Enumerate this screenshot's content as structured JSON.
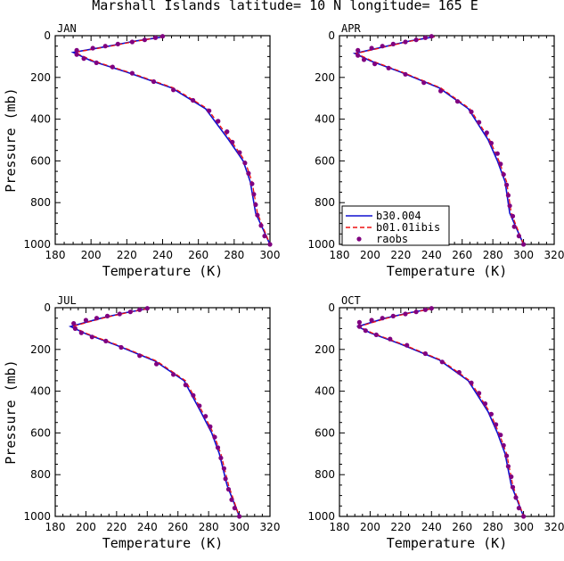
{
  "title": "Marshall Islands  latitude= 10 N longitude= 165 E",
  "xlabel": "Temperature (K)",
  "ylabel": "Pressure (mb)",
  "colors": {
    "b30": "#1010d0",
    "b01": "#ee1111",
    "raobs": "#800080"
  },
  "legend": {
    "labels": [
      "b30.004",
      "b01.01ibis",
      "raobs"
    ]
  },
  "chart_data": [
    {
      "type": "line",
      "month": "JAN",
      "xlim": [
        180,
        300
      ],
      "ylim": [
        0,
        1000
      ],
      "xticks": [
        "180",
        "200",
        "220",
        "240",
        "260",
        "280",
        "300"
      ],
      "yticks": [
        "0",
        "200",
        "400",
        "600",
        "800",
        "1000"
      ],
      "series": [
        {
          "name": "b30.004",
          "points": [
            [
              241,
              5
            ],
            [
              225,
              25
            ],
            [
              210,
              50
            ],
            [
              190,
              80
            ],
            [
              200,
              120
            ],
            [
              220,
              175
            ],
            [
              245,
              250
            ],
            [
              264,
              350
            ],
            [
              277,
              500
            ],
            [
              285,
              600
            ],
            [
              289,
              700
            ],
            [
              292,
              850
            ],
            [
              300,
              1000
            ]
          ]
        },
        {
          "name": "b01.01ibis",
          "points": [
            [
              241,
              5
            ],
            [
              226,
              25
            ],
            [
              211,
              50
            ],
            [
              191,
              80
            ],
            [
              201,
              120
            ],
            [
              221,
              175
            ],
            [
              246,
              250
            ],
            [
              265,
              350
            ],
            [
              278,
              500
            ],
            [
              286,
              600
            ],
            [
              290,
              700
            ],
            [
              293,
              850
            ],
            [
              300,
              1000
            ]
          ]
        },
        {
          "name": "raobs",
          "points": [
            [
              240,
              3
            ],
            [
              236,
              10
            ],
            [
              230,
              20
            ],
            [
              223,
              30
            ],
            [
              215,
              40
            ],
            [
              208,
              50
            ],
            [
              201,
              60
            ],
            [
              192,
              70
            ],
            [
              192,
              90
            ],
            [
              196,
              110
            ],
            [
              203,
              130
            ],
            [
              212,
              150
            ],
            [
              223,
              180
            ],
            [
              235,
              220
            ],
            [
              246,
              260
            ],
            [
              257,
              310
            ],
            [
              266,
              360
            ],
            [
              271,
              410
            ],
            [
              276,
              460
            ],
            [
              279,
              510
            ],
            [
              283,
              560
            ],
            [
              286,
              610
            ],
            [
              288,
              660
            ],
            [
              290,
              710
            ],
            [
              291,
              760
            ],
            [
              292,
              810
            ],
            [
              293,
              860
            ],
            [
              295,
              910
            ],
            [
              297,
              960
            ],
            [
              300,
              1000
            ]
          ]
        }
      ]
    },
    {
      "type": "line",
      "month": "APR",
      "xlim": [
        180,
        320
      ],
      "ylim": [
        0,
        1000
      ],
      "xticks": [
        "180",
        "200",
        "220",
        "240",
        "260",
        "280",
        "300",
        "320"
      ],
      "yticks": [
        "0",
        "200",
        "400",
        "600",
        "800",
        "1000"
      ],
      "series": [
        {
          "name": "b30.004",
          "points": [
            [
              242,
              5
            ],
            [
              226,
              25
            ],
            [
              211,
              50
            ],
            [
              190,
              85
            ],
            [
              200,
              120
            ],
            [
              220,
              175
            ],
            [
              245,
              250
            ],
            [
              264,
              350
            ],
            [
              277,
              500
            ],
            [
              283,
              600
            ],
            [
              288,
              700
            ],
            [
              291,
              850
            ],
            [
              300,
              1000
            ]
          ]
        },
        {
          "name": "b01.01ibis",
          "points": [
            [
              242,
              5
            ],
            [
              227,
              25
            ],
            [
              212,
              50
            ],
            [
              191,
              85
            ],
            [
              201,
              120
            ],
            [
              221,
              175
            ],
            [
              246,
              250
            ],
            [
              265,
              350
            ],
            [
              278,
              500
            ],
            [
              284,
              600
            ],
            [
              289,
              700
            ],
            [
              292,
              850
            ],
            [
              300,
              1000
            ]
          ]
        },
        {
          "name": "raobs",
          "points": [
            [
              240,
              3
            ],
            [
              236,
              10
            ],
            [
              230,
              20
            ],
            [
              223,
              30
            ],
            [
              215,
              40
            ],
            [
              208,
              50
            ],
            [
              201,
              60
            ],
            [
              192,
              70
            ],
            [
              192,
              95
            ],
            [
              196,
              115
            ],
            [
              203,
              135
            ],
            [
              212,
              155
            ],
            [
              223,
              185
            ],
            [
              235,
              225
            ],
            [
              246,
              265
            ],
            [
              257,
              315
            ],
            [
              266,
              365
            ],
            [
              271,
              415
            ],
            [
              276,
              465
            ],
            [
              279,
              515
            ],
            [
              283,
              565
            ],
            [
              285,
              615
            ],
            [
              287,
              665
            ],
            [
              289,
              715
            ],
            [
              290,
              765
            ],
            [
              291,
              815
            ],
            [
              293,
              865
            ],
            [
              294,
              915
            ],
            [
              297,
              960
            ],
            [
              300,
              1000
            ]
          ]
        }
      ]
    },
    {
      "type": "line",
      "month": "JUL",
      "xlim": [
        180,
        320
      ],
      "ylim": [
        0,
        1000
      ],
      "xticks": [
        "180",
        "200",
        "220",
        "240",
        "260",
        "280",
        "300",
        "320"
      ],
      "yticks": [
        "0",
        "200",
        "400",
        "600",
        "800",
        "1000"
      ],
      "series": [
        {
          "name": "b30.004",
          "points": [
            [
              240,
              5
            ],
            [
              225,
              25
            ],
            [
              210,
              50
            ],
            [
              190,
              90
            ],
            [
              200,
              125
            ],
            [
              220,
              180
            ],
            [
              245,
              255
            ],
            [
              264,
              350
            ],
            [
              275,
              500
            ],
            [
              282,
              600
            ],
            [
              287,
              700
            ],
            [
              292,
              850
            ],
            [
              300,
              1000
            ]
          ]
        },
        {
          "name": "b01.01ibis",
          "points": [
            [
              240,
              5
            ],
            [
              226,
              25
            ],
            [
              211,
              50
            ],
            [
              191,
              90
            ],
            [
              201,
              125
            ],
            [
              221,
              180
            ],
            [
              246,
              255
            ],
            [
              265,
              350
            ],
            [
              276,
              500
            ],
            [
              283,
              600
            ],
            [
              288,
              700
            ],
            [
              293,
              850
            ],
            [
              300,
              1000
            ]
          ]
        },
        {
          "name": "raobs",
          "points": [
            [
              240,
              3
            ],
            [
              235,
              10
            ],
            [
              229,
              20
            ],
            [
              222,
              30
            ],
            [
              214,
              40
            ],
            [
              207,
              50
            ],
            [
              200,
              60
            ],
            [
              192,
              75
            ],
            [
              193,
              100
            ],
            [
              197,
              120
            ],
            [
              204,
              140
            ],
            [
              213,
              160
            ],
            [
              223,
              190
            ],
            [
              235,
              230
            ],
            [
              246,
              270
            ],
            [
              257,
              320
            ],
            [
              265,
              370
            ],
            [
              270,
              420
            ],
            [
              274,
              470
            ],
            [
              278,
              520
            ],
            [
              281,
              570
            ],
            [
              284,
              620
            ],
            [
              286,
              670
            ],
            [
              288,
              720
            ],
            [
              290,
              770
            ],
            [
              291,
              820
            ],
            [
              293,
              870
            ],
            [
              295,
              920
            ],
            [
              297,
              960
            ],
            [
              300,
              1000
            ]
          ]
        }
      ]
    },
    {
      "type": "line",
      "month": "OCT",
      "xlim": [
        180,
        320
      ],
      "ylim": [
        0,
        1000
      ],
      "xticks": [
        "180",
        "200",
        "220",
        "240",
        "260",
        "280",
        "300",
        "320"
      ],
      "yticks": [
        "0",
        "200",
        "400",
        "600",
        "800",
        "1000"
      ],
      "series": [
        {
          "name": "b30.004",
          "points": [
            [
              240,
              5
            ],
            [
              225,
              25
            ],
            [
              210,
              50
            ],
            [
              192,
              90
            ],
            [
              200,
              120
            ],
            [
              220,
              175
            ],
            [
              245,
              250
            ],
            [
              264,
              350
            ],
            [
              277,
              500
            ],
            [
              283,
              600
            ],
            [
              288,
              700
            ],
            [
              292,
              850
            ],
            [
              300,
              1000
            ]
          ]
        },
        {
          "name": "b01.01ibis",
          "points": [
            [
              240,
              5
            ],
            [
              226,
              25
            ],
            [
              211,
              50
            ],
            [
              193,
              90
            ],
            [
              201,
              120
            ],
            [
              221,
              175
            ],
            [
              246,
              250
            ],
            [
              265,
              350
            ],
            [
              278,
              500
            ],
            [
              284,
              600
            ],
            [
              289,
              700
            ],
            [
              293,
              850
            ],
            [
              300,
              1000
            ]
          ]
        },
        {
          "name": "raobs",
          "points": [
            [
              240,
              3
            ],
            [
              236,
              10
            ],
            [
              230,
              20
            ],
            [
              223,
              30
            ],
            [
              215,
              40
            ],
            [
              208,
              50
            ],
            [
              201,
              60
            ],
            [
              193,
              70
            ],
            [
              193,
              90
            ],
            [
              197,
              110
            ],
            [
              204,
              130
            ],
            [
              213,
              150
            ],
            [
              224,
              180
            ],
            [
              236,
              220
            ],
            [
              247,
              260
            ],
            [
              258,
              310
            ],
            [
              266,
              360
            ],
            [
              271,
              410
            ],
            [
              275,
              460
            ],
            [
              279,
              510
            ],
            [
              282,
              560
            ],
            [
              285,
              610
            ],
            [
              287,
              660
            ],
            [
              289,
              710
            ],
            [
              290,
              760
            ],
            [
              292,
              810
            ],
            [
              293,
              860
            ],
            [
              295,
              910
            ],
            [
              297,
              960
            ],
            [
              300,
              1000
            ]
          ]
        }
      ]
    }
  ]
}
